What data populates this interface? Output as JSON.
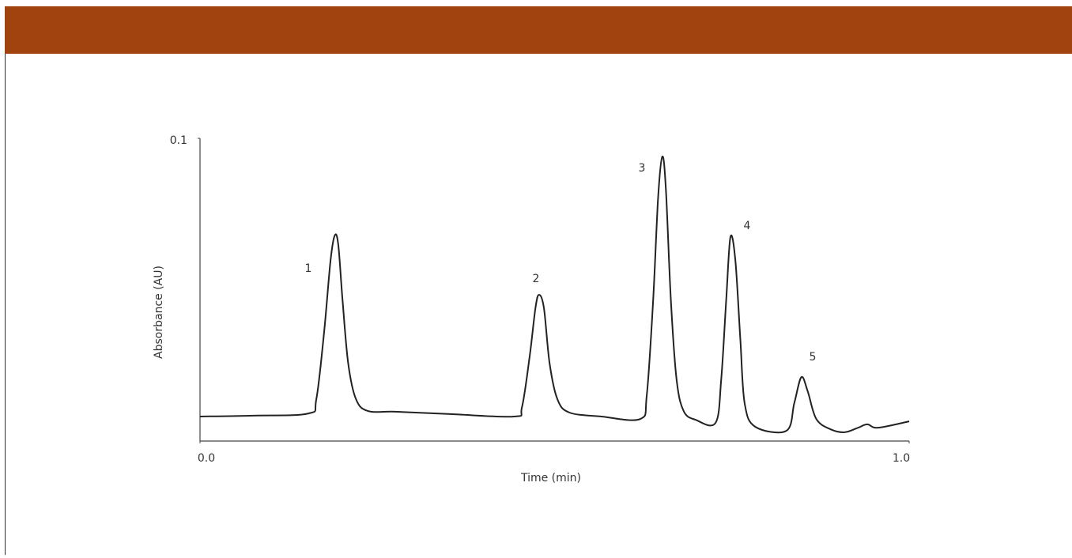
{
  "chart_data": {
    "type": "line",
    "x_label": "Time (min)",
    "y_label": "Absorbance (AU)",
    "x": [
      0,
      0.075,
      0.153,
      0.164,
      0.175,
      0.184,
      0.19,
      0.195,
      0.201,
      0.209,
      0.22,
      0.237,
      0.275,
      0.353,
      0.443,
      0.454,
      0.465,
      0.473,
      0.478,
      0.485,
      0.493,
      0.504,
      0.521,
      0.566,
      0.621,
      0.63,
      0.639,
      0.646,
      0.652,
      0.657,
      0.664,
      0.672,
      0.682,
      0.699,
      0.727,
      0.735,
      0.742,
      0.748,
      0.755,
      0.762,
      0.768,
      0.783,
      0.827,
      0.838,
      0.848,
      0.857,
      0.869,
      0.889,
      0.909,
      0.928,
      0.941,
      0.956,
      1.0
    ],
    "values": [
      0.0081,
      0.0084,
      0.0091,
      0.0138,
      0.036,
      0.0595,
      0.0679,
      0.0648,
      0.0465,
      0.0256,
      0.0138,
      0.0099,
      0.0097,
      0.0089,
      0.0081,
      0.0112,
      0.0282,
      0.0439,
      0.0483,
      0.0439,
      0.0256,
      0.0138,
      0.0094,
      0.0081,
      0.0073,
      0.0151,
      0.0465,
      0.0804,
      0.094,
      0.083,
      0.0465,
      0.0204,
      0.0099,
      0.007,
      0.006,
      0.0204,
      0.0465,
      0.0674,
      0.0595,
      0.0334,
      0.0125,
      0.0047,
      0.0034,
      0.0125,
      0.0211,
      0.0164,
      0.0073,
      0.0039,
      0.0029,
      0.0044,
      0.0055,
      0.0044,
      0.0065
    ],
    "color": "#222222",
    "xlim": [
      0,
      1
    ],
    "xticks": [
      {
        "value": 0,
        "label": "0.0"
      },
      {
        "value": 1,
        "label": "1.0"
      }
    ],
    "ylim": [
      0,
      0.1
    ],
    "yticks": [
      0.1
    ],
    "annotations": [
      "1",
      "2",
      "3",
      "4",
      "5"
    ]
  }
}
